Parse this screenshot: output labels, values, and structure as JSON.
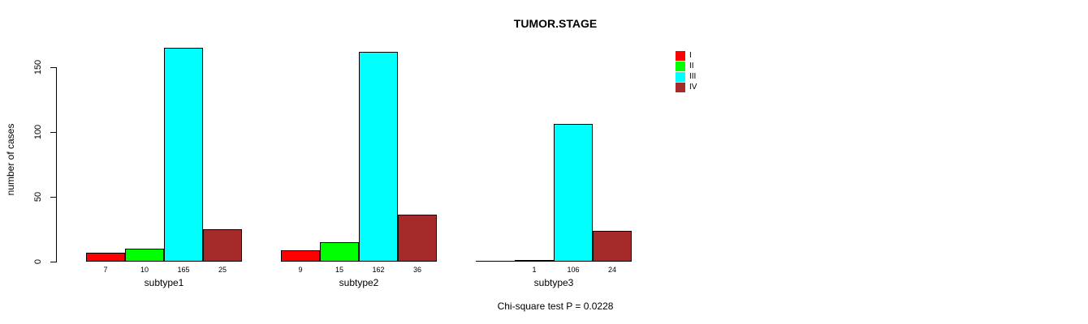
{
  "chart_data": {
    "type": "bar",
    "title": "TUMOR.STAGE",
    "ylabel": "number of cases",
    "xlabel": "",
    "categories": [
      "subtype1",
      "subtype2",
      "subtype3"
    ],
    "series": [
      {
        "name": "I",
        "color": "#ff0000",
        "values": [
          7,
          9,
          0
        ]
      },
      {
        "name": "II",
        "color": "#00ff00",
        "values": [
          10,
          15,
          1
        ]
      },
      {
        "name": "III",
        "color": "#00ffff",
        "values": [
          165,
          162,
          106
        ]
      },
      {
        "name": "IV",
        "color": "#a52a2a",
        "values": [
          25,
          36,
          24
        ]
      }
    ],
    "bar_labels": [
      [
        "7",
        "10",
        "165",
        "25"
      ],
      [
        "9",
        "15",
        "162",
        "36"
      ],
      [
        "",
        "1",
        "106",
        "24"
      ]
    ],
    "yticks": [
      0,
      50,
      100,
      150
    ],
    "ylim": [
      0,
      165
    ],
    "grid": false,
    "legend_position": "top-right",
    "annotation": "Chi-square test P = 0.0228"
  }
}
